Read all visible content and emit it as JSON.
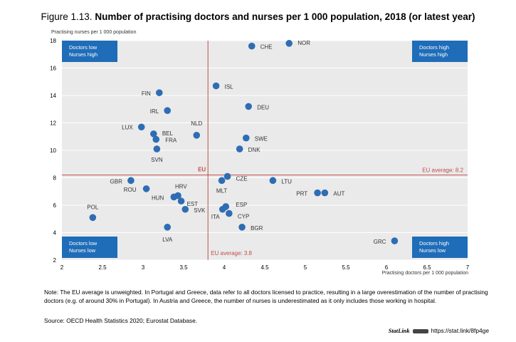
{
  "header": {
    "figure_label": "Figure 1.13.",
    "title": "Number of practising doctors and nurses per 1 000 population, 2018 (or latest year)"
  },
  "chart_data": {
    "type": "scatter",
    "xlabel": "Practising doctors per 1 000 population",
    "ylabel": "Practising nurses per 1 000 population",
    "xlim": [
      2,
      7
    ],
    "ylim": [
      2,
      18
    ],
    "xticks": [
      2,
      2.5,
      3,
      3.5,
      4,
      4.5,
      5,
      5.5,
      6,
      6.5,
      7
    ],
    "xtick_labels": [
      "2",
      "2.5",
      "3",
      "3.5",
      "4",
      "4.5",
      "5",
      "5.5",
      "6",
      "6.5",
      "7"
    ],
    "yticks": [
      2,
      4,
      6,
      8,
      10,
      12,
      14,
      16,
      18
    ],
    "grid": true,
    "point_color": "#2e6db4",
    "line_color": "#c0504d",
    "quadrant_color": "#1f6db8",
    "points": [
      {
        "label": "CHE",
        "x": 4.34,
        "y": 17.6
      },
      {
        "label": "NOR",
        "x": 4.8,
        "y": 17.8
      },
      {
        "label": "ISL",
        "x": 3.9,
        "y": 14.7
      },
      {
        "label": "FIN",
        "x": 3.2,
        "y": 14.2
      },
      {
        "label": "DEU",
        "x": 4.3,
        "y": 13.2
      },
      {
        "label": "IRL",
        "x": 3.3,
        "y": 12.9
      },
      {
        "label": "NLD",
        "x": 3.66,
        "y": 11.1
      },
      {
        "label": "LUX",
        "x": 2.98,
        "y": 11.7
      },
      {
        "label": "BEL",
        "x": 3.13,
        "y": 11.2
      },
      {
        "label": "FRA",
        "x": 3.16,
        "y": 10.8
      },
      {
        "label": "SVN",
        "x": 3.17,
        "y": 10.1
      },
      {
        "label": "SWE",
        "x": 4.27,
        "y": 10.9
      },
      {
        "label": "DNK",
        "x": 4.19,
        "y": 10.1
      },
      {
        "label": "CZE",
        "x": 4.04,
        "y": 8.1
      },
      {
        "label": "MLT",
        "x": 3.97,
        "y": 7.8
      },
      {
        "label": "LTU",
        "x": 4.6,
        "y": 7.8
      },
      {
        "label": "GBR",
        "x": 2.85,
        "y": 7.8
      },
      {
        "label": "ROU",
        "x": 3.04,
        "y": 7.2
      },
      {
        "label": "HRV",
        "x": 3.43,
        "y": 6.7
      },
      {
        "label": "HUN",
        "x": 3.38,
        "y": 6.6
      },
      {
        "label": "EST",
        "x": 3.47,
        "y": 6.3
      },
      {
        "label": "SVK",
        "x": 3.52,
        "y": 5.7
      },
      {
        "label": "ESP",
        "x": 4.02,
        "y": 5.9
      },
      {
        "label": "ITA",
        "x": 3.98,
        "y": 5.7
      },
      {
        "label": "CYP",
        "x": 4.06,
        "y": 5.4
      },
      {
        "label": "PRT",
        "x": 5.15,
        "y": 6.9
      },
      {
        "label": "AUT",
        "x": 5.24,
        "y": 6.9
      },
      {
        "label": "POL",
        "x": 2.38,
        "y": 5.1
      },
      {
        "label": "LVA",
        "x": 3.3,
        "y": 4.4
      },
      {
        "label": "BGR",
        "x": 4.22,
        "y": 4.4
      },
      {
        "label": "GRC",
        "x": 6.1,
        "y": 3.4
      }
    ],
    "reference_lines": {
      "eu_doctors": {
        "value": 3.8,
        "label": "EU average: 3.8"
      },
      "eu_nurses": {
        "value": 8.2,
        "label": "EU average: 8.2"
      },
      "eu_marker": "EU"
    },
    "quadrants": {
      "top_left": [
        "Doctors low",
        "Nurses high"
      ],
      "top_right": [
        "Doctors high",
        "Nurses high"
      ],
      "bottom_left": [
        "Doctors low",
        "Nurses low"
      ],
      "bottom_right": [
        "Doctors high",
        "Nurses low"
      ]
    }
  },
  "footer": {
    "note": "Note: The EU average is unweighted. In Portugal and Greece, data refer to all doctors licensed to practice, resulting in a large overestimation of the number of practising doctors (e.g. of around 30% in Portugal). In Austria and Greece, the number of nurses is underestimated as it only includes those working in hospital.",
    "source": "Source: OECD Health Statistics 2020; Eurostat Database.",
    "statlink_brand": "StatLink",
    "statlink_url": "https://stat.link/8fp4ge"
  }
}
